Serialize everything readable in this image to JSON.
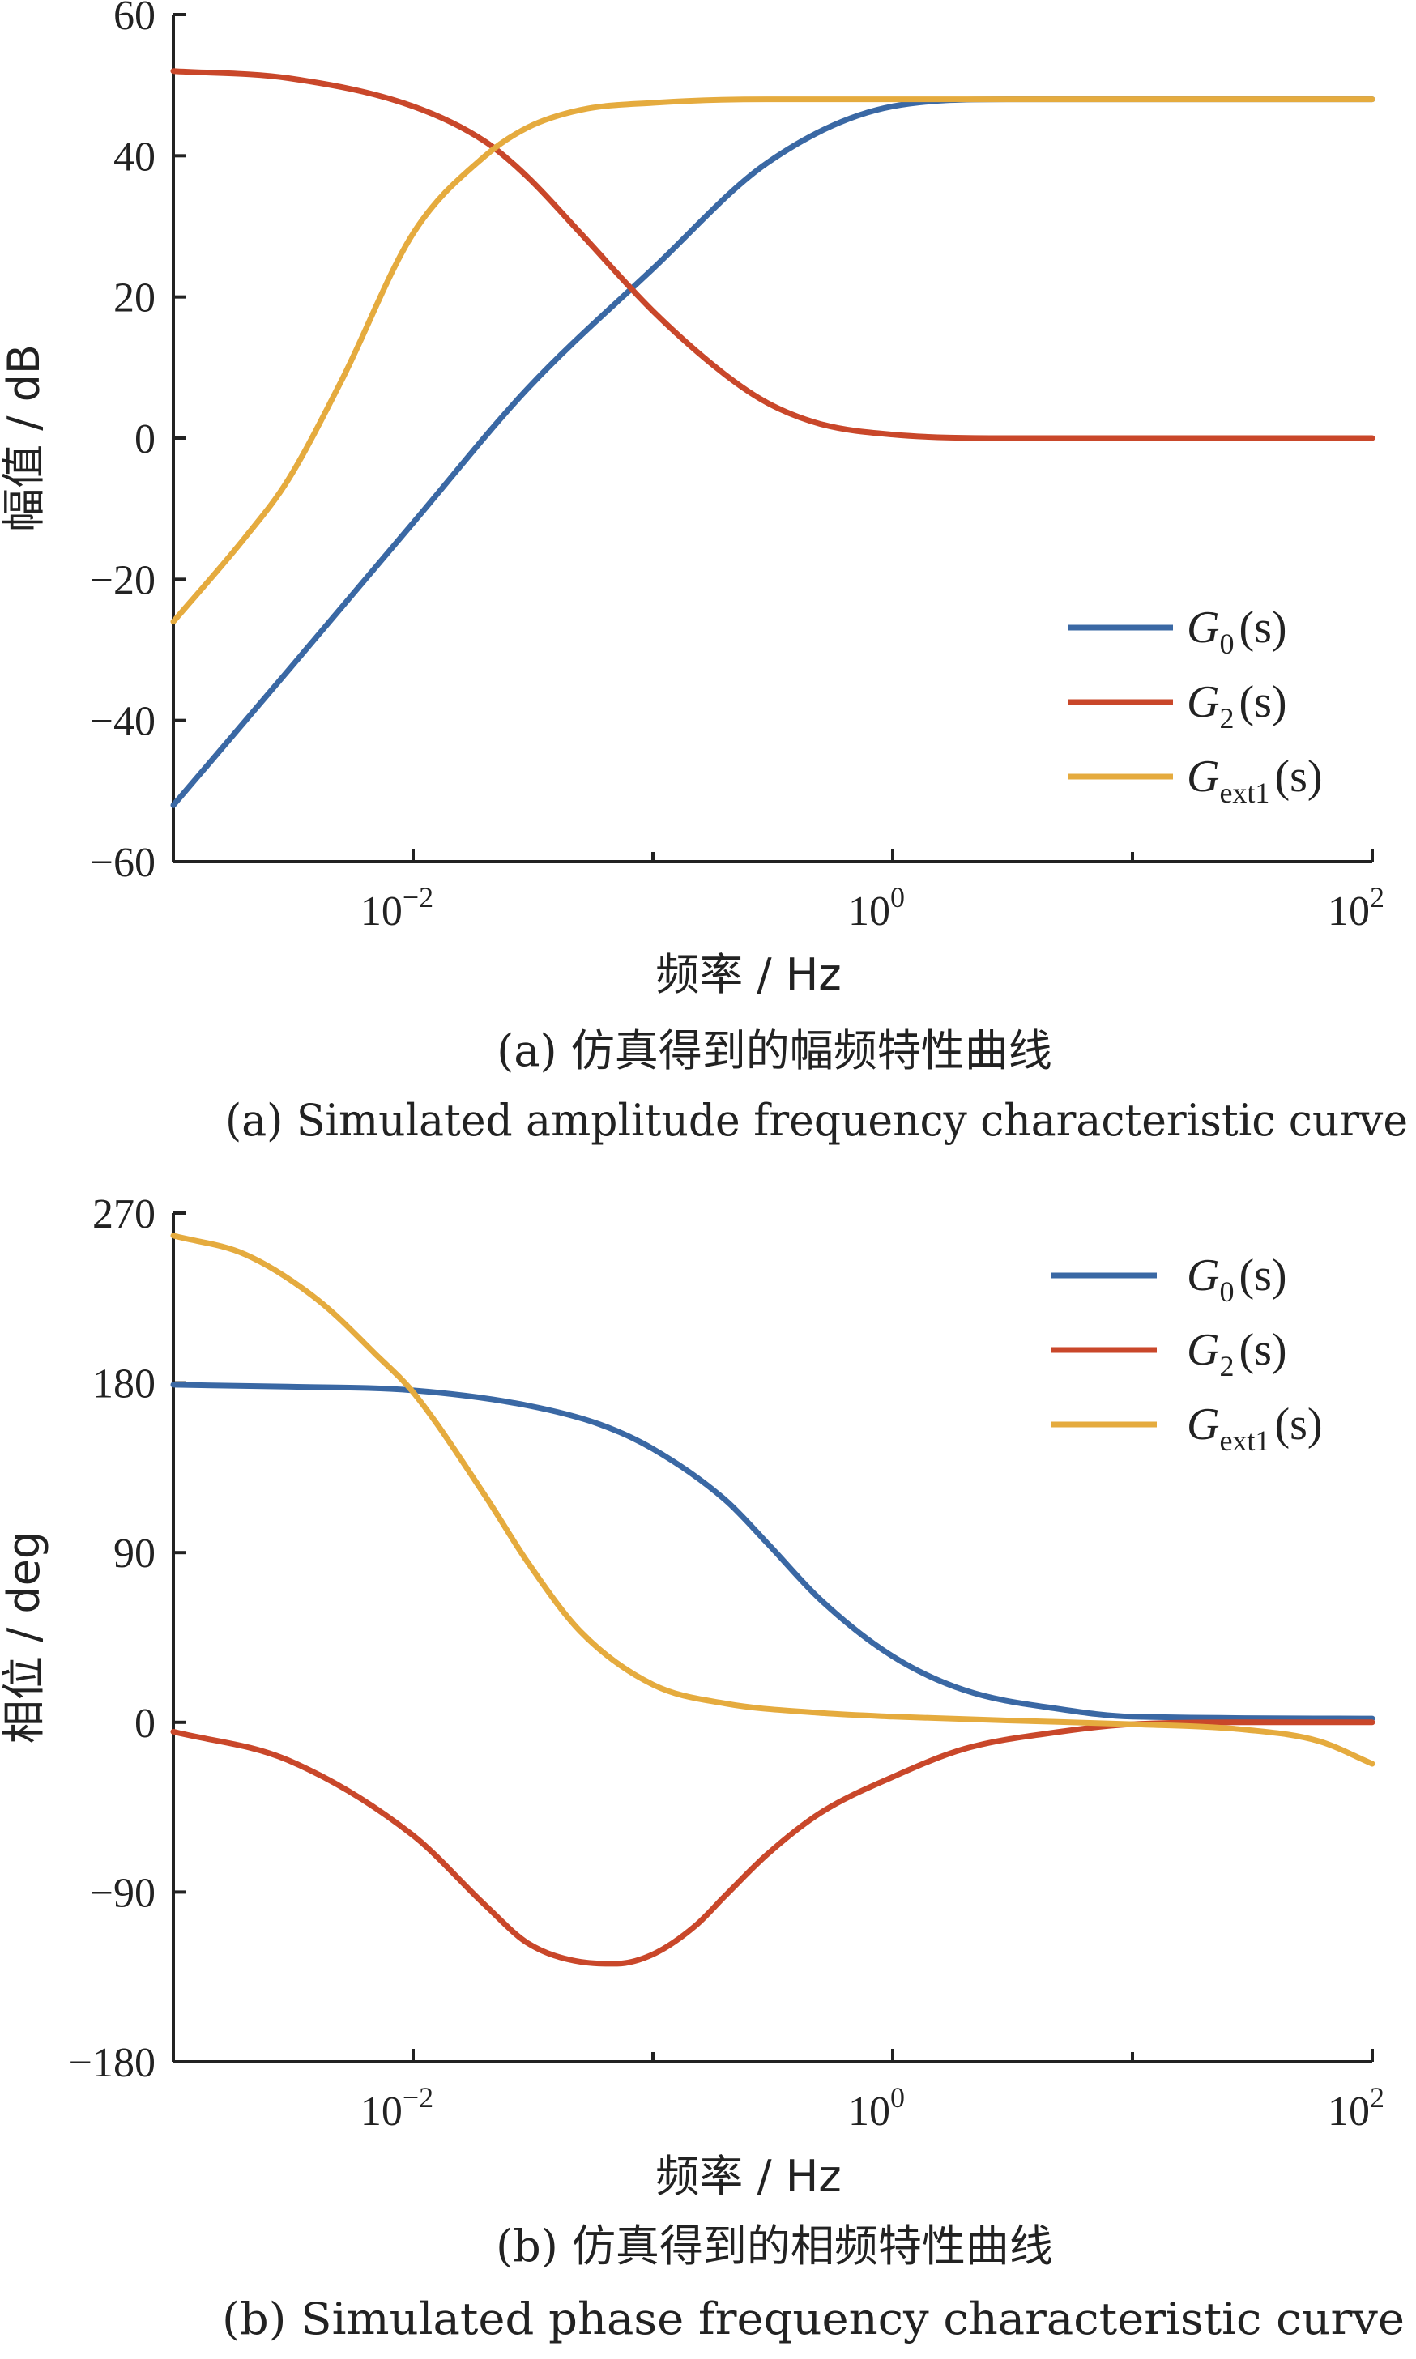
{
  "chart_data": [
    {
      "type": "line",
      "panel": "a",
      "x_scale": "log",
      "xlim": [
        0.001,
        100
      ],
      "ylim": [
        -60,
        60
      ],
      "x_ticks": [
        {
          "base": "10",
          "exp": "−2"
        },
        {
          "base": "10",
          "exp": "0"
        },
        {
          "base": "10",
          "exp": "2"
        }
      ],
      "y_ticks": [
        "60",
        "40",
        "20",
        "0",
        "−20",
        "−40",
        "−60"
      ],
      "y_tick_values": [
        60,
        40,
        20,
        0,
        -20,
        -40,
        -60
      ],
      "xlabel": "频率 / Hz",
      "ylabel": "幅值 / dB",
      "legend_position": "lower-right",
      "series": [
        {
          "name": "G0(s)",
          "legend_main": "G",
          "legend_sub": "0",
          "legend_tail": "(s)",
          "color": "#3a68a4",
          "x": [
            0.001,
            0.003,
            0.01,
            0.03,
            0.1,
            0.3,
            1,
            3,
            10,
            100
          ],
          "values": [
            -52,
            -33,
            -12,
            7,
            24,
            39,
            47,
            48,
            48,
            48
          ]
        },
        {
          "name": "G2(s)",
          "legend_main": "G",
          "legend_sub": "2",
          "legend_tail": "(s)",
          "color": "#c9472a",
          "x": [
            0.001,
            0.003,
            0.01,
            0.02,
            0.03,
            0.05,
            0.1,
            0.2,
            0.3,
            0.5,
            1,
            3,
            10,
            100
          ],
          "values": [
            52,
            51,
            47,
            42,
            37,
            29,
            18,
            9,
            5,
            2,
            0.5,
            0,
            0,
            0
          ]
        },
        {
          "name": "Gext1(s)",
          "legend_main": "G",
          "legend_sub": "ext1",
          "legend_tail": "(s)",
          "color": "#e5ab3e",
          "x": [
            0.001,
            0.002,
            0.003,
            0.005,
            0.01,
            0.02,
            0.03,
            0.05,
            0.1,
            0.3,
            1,
            10,
            100
          ],
          "values": [
            -26,
            -14,
            -6,
            8,
            29,
            40,
            44,
            46.5,
            47.5,
            48,
            48,
            48,
            48
          ]
        }
      ],
      "caption_zh": "(a) 仿真得到的幅频特性曲线",
      "caption_en": "(a) Simulated amplitude frequency characteristic curve"
    },
    {
      "type": "line",
      "panel": "b",
      "x_scale": "log",
      "xlim": [
        0.001,
        100
      ],
      "ylim": [
        -180,
        270
      ],
      "x_ticks": [
        {
          "base": "10",
          "exp": "−2"
        },
        {
          "base": "10",
          "exp": "0"
        },
        {
          "base": "10",
          "exp": "2"
        }
      ],
      "y_ticks": [
        "270",
        "180",
        "90",
        "0",
        "−90",
        "−180"
      ],
      "y_tick_values": [
        270,
        180,
        90,
        0,
        -90,
        -180
      ],
      "xlabel": "频率 / Hz",
      "ylabel": "相位 / deg",
      "legend_position": "top-right",
      "series": [
        {
          "name": "G0(s)",
          "legend_main": "G",
          "legend_sub": "0",
          "legend_tail": "(s)",
          "color": "#3a68a4",
          "x": [
            0.001,
            0.003,
            0.01,
            0.03,
            0.06,
            0.1,
            0.2,
            0.3,
            0.5,
            1,
            2,
            5,
            10,
            100
          ],
          "values": [
            179,
            178,
            176,
            168,
            158,
            145,
            118,
            95,
            65,
            35,
            17,
            7,
            3,
            2
          ]
        },
        {
          "name": "G2(s)",
          "legend_main": "G",
          "legend_sub": "2",
          "legend_tail": "(s)",
          "color": "#c9472a",
          "x": [
            0.001,
            0.003,
            0.01,
            0.02,
            0.03,
            0.05,
            0.07,
            0.1,
            0.15,
            0.2,
            0.3,
            0.5,
            1,
            2,
            5,
            10,
            30,
            100
          ],
          "values": [
            -5,
            -20,
            -60,
            -97,
            -117,
            -127,
            -128,
            -123,
            -108,
            -92,
            -70,
            -48,
            -29,
            -14,
            -5,
            -1,
            0,
            0
          ]
        },
        {
          "name": "Gext1(s)",
          "legend_main": "G",
          "legend_sub": "ext1",
          "legend_tail": "(s)",
          "color": "#e5ab3e",
          "x": [
            0.001,
            0.002,
            0.004,
            0.007,
            0.01,
            0.02,
            0.03,
            0.05,
            0.1,
            0.2,
            0.5,
            1,
            3,
            10,
            30,
            60,
            100
          ],
          "values": [
            258,
            248,
            224,
            195,
            175,
            120,
            85,
            48,
            20,
            10,
            5,
            3,
            1,
            -1,
            -4,
            -10,
            -22
          ]
        }
      ],
      "caption_zh": "(b) 仿真得到的相频特性曲线",
      "caption_en": "(b) Simulated phase frequency characteristic curve"
    }
  ]
}
